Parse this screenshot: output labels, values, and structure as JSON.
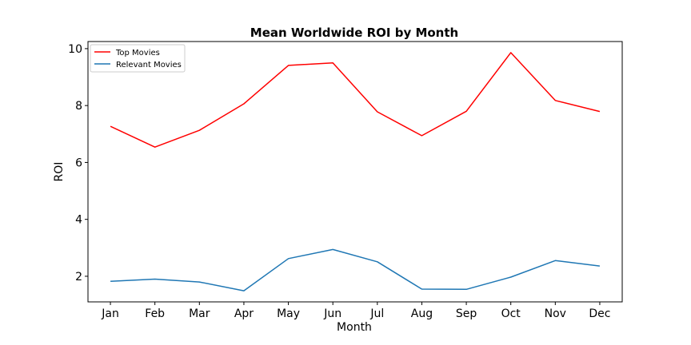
{
  "chart_data": {
    "type": "line",
    "title": "Mean Worldwide ROI by Month",
    "xlabel": "Month",
    "ylabel": "ROI",
    "categories": [
      "Jan",
      "Feb",
      "Mar",
      "Apr",
      "May",
      "Jun",
      "Jul",
      "Aug",
      "Sep",
      "Oct",
      "Nov",
      "Dec"
    ],
    "yticks": [
      2,
      4,
      6,
      8,
      10
    ],
    "ylim": [
      1.1,
      10.25
    ],
    "grid": false,
    "legend_position": "top-left",
    "series": [
      {
        "name": "Top Movies",
        "color": "#ff0000",
        "values": [
          7.27,
          6.54,
          7.13,
          8.06,
          9.41,
          9.5,
          7.78,
          6.94,
          7.8,
          9.86,
          8.18,
          7.79
        ]
      },
      {
        "name": "Relevant Movies",
        "color": "#1f77b4",
        "values": [
          1.82,
          1.9,
          1.8,
          1.49,
          2.62,
          2.94,
          2.51,
          1.55,
          1.54,
          1.97,
          2.55,
          2.36
        ]
      }
    ]
  }
}
